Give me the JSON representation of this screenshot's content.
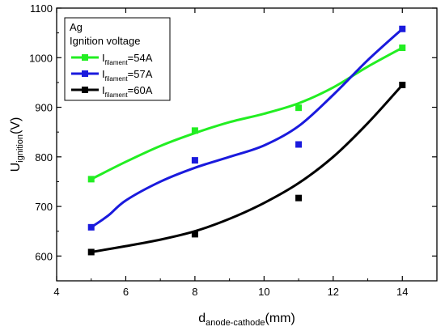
{
  "chart_data": {
    "type": "scatter",
    "title": "",
    "xlabel": {
      "main": "d",
      "sub": "anode-cathode",
      "unit": "(mm)"
    },
    "ylabel": {
      "main": "U",
      "sub": "ignition",
      "unit": "(V)"
    },
    "xlim": [
      4,
      15
    ],
    "ylim": [
      550,
      1100
    ],
    "x_ticks": [
      4,
      6,
      8,
      10,
      12,
      14
    ],
    "y_ticks": [
      600,
      700,
      800,
      900,
      1000,
      1100
    ],
    "grid": false,
    "legend": {
      "position": "top-left",
      "header_line1": "Ag",
      "header_line2": "Ignition voltage"
    },
    "series": [
      {
        "label_main": "I",
        "label_sub": "filament",
        "label_value": "=54A",
        "color": "#22ee22",
        "x": [
          5,
          8,
          11,
          14
        ],
        "y": [
          755,
          853,
          899,
          1020
        ],
        "fit": [
          [
            5,
            755
          ],
          [
            6,
            790
          ],
          [
            7,
            822
          ],
          [
            8,
            848
          ],
          [
            9,
            870
          ],
          [
            10,
            887
          ],
          [
            11,
            908
          ],
          [
            12,
            940
          ],
          [
            13,
            982
          ],
          [
            14,
            1020
          ]
        ]
      },
      {
        "label_main": "I",
        "label_sub": "filament",
        "label_value": "=57A",
        "color": "#1a1add",
        "x": [
          5,
          8,
          11,
          14
        ],
        "y": [
          658,
          793,
          825,
          1058
        ],
        "fit": [
          [
            5,
            658
          ],
          [
            5.5,
            682
          ],
          [
            6,
            712
          ],
          [
            7,
            750
          ],
          [
            8,
            778
          ],
          [
            9,
            800
          ],
          [
            10,
            823
          ],
          [
            11,
            862
          ],
          [
            12,
            925
          ],
          [
            13,
            995
          ],
          [
            14,
            1058
          ]
        ]
      },
      {
        "label_main": "I",
        "label_sub": "filament",
        "label_value": "=60A",
        "color": "#000000",
        "x": [
          5,
          8,
          11,
          14
        ],
        "y": [
          608,
          644,
          717,
          945
        ],
        "fit": [
          [
            5,
            608
          ],
          [
            6,
            620
          ],
          [
            7,
            633
          ],
          [
            8,
            650
          ],
          [
            9,
            675
          ],
          [
            10,
            707
          ],
          [
            11,
            747
          ],
          [
            12,
            800
          ],
          [
            13,
            868
          ],
          [
            14,
            945
          ]
        ]
      }
    ]
  }
}
